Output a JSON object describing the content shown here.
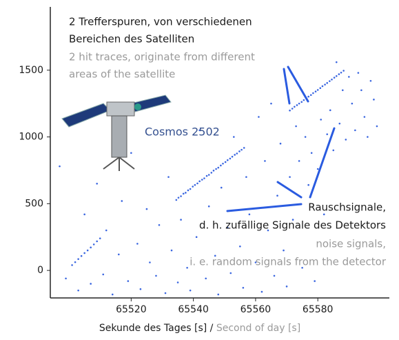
{
  "chart_data": {
    "type": "scatter",
    "xlim": [
      65494,
      65603
    ],
    "ylim": [
      -206,
      1974
    ],
    "xticks": [
      65520,
      65540,
      65560,
      65580
    ],
    "yticks": [
      0,
      500,
      1000,
      1500
    ],
    "color": "#3a66e0",
    "xlabel": {
      "de": "Sekunde des Tages [s]",
      "sep": "/",
      "en": "Second of day [s]"
    },
    "annotations": {
      "traces_de": [
        "2 Trefferspuren, von verschiedenen",
        "Bereichen des Satelliten"
      ],
      "traces_en": [
        "2 hit traces, originate from different",
        "areas of the satellite"
      ],
      "satellite": "Cosmos 2502",
      "noise_de": [
        "Rauschsignale,",
        "d. h. zufällige Signale des Detektors"
      ],
      "noise_en": [
        "noise signals,",
        "i. e. random signals from the detector"
      ]
    },
    "x": [
      65534.5,
      65535.2,
      65536.0,
      65536.8,
      65537.5,
      65538.3,
      65539.0,
      65539.8,
      65540.5,
      65541.3,
      65542.0,
      65542.8,
      65543.5,
      65544.3,
      65545.0,
      65545.8,
      65546.5,
      65547.3,
      65548.0,
      65548.8,
      65549.5,
      65550.3,
      65551.0,
      65551.8,
      65552.5,
      65553.3,
      65554.0,
      65554.8,
      65555.5,
      65556.3,
      65571.0,
      65571.8,
      65572.5,
      65573.3,
      65574.0,
      65574.8,
      65575.5,
      65576.3,
      65577.0,
      65577.8,
      65578.5,
      65579.3,
      65580.0,
      65580.8,
      65581.5,
      65582.3,
      65583.0,
      65583.8,
      65584.5,
      65585.3,
      65586.0,
      65586.8,
      65587.5,
      65588.3,
      65501,
      65502,
      65503,
      65504,
      65505,
      65506,
      65507,
      65508,
      65509,
      65510,
      65497,
      65499,
      65503,
      65505,
      65507,
      65509,
      65511,
      65512,
      65514,
      65516,
      65517,
      65519,
      65520,
      65522,
      65523,
      65525,
      65526,
      65528,
      65529,
      65531,
      65532,
      65533,
      65535,
      65536,
      65538,
      65539,
      65541,
      65542,
      65544,
      65545,
      65547,
      65548,
      65549,
      65551,
      65552,
      65553,
      65555,
      65556,
      65557,
      65558,
      65560,
      65561,
      65562,
      65563,
      65564,
      65565,
      65566,
      65567,
      65568,
      65569,
      65570,
      65571,
      65572,
      65573,
      65574,
      65575,
      65576,
      65577,
      65578,
      65579,
      65580,
      65581,
      65582,
      65583,
      65584,
      65585,
      65586,
      65587,
      65588,
      65589,
      65590,
      65591,
      65592,
      65593,
      65594,
      65595,
      65596,
      65597,
      65598,
      65599
    ],
    "values": [
      528,
      545,
      556,
      575,
      582,
      600,
      610,
      628,
      640,
      652,
      668,
      680,
      690,
      708,
      716,
      732,
      748,
      760,
      770,
      786,
      800,
      812,
      826,
      838,
      852,
      866,
      876,
      892,
      904,
      918,
      1198,
      1212,
      1226,
      1238,
      1250,
      1262,
      1276,
      1290,
      1302,
      1314,
      1328,
      1340,
      1352,
      1366,
      1380,
      1392,
      1404,
      1418,
      1430,
      1444,
      1456,
      1470,
      1482,
      1496,
      40,
      62,
      85,
      108,
      130,
      150,
      172,
      195,
      218,
      240,
      780,
      -60,
      -150,
      420,
      -100,
      650,
      -30,
      300,
      -180,
      120,
      520,
      -80,
      880,
      200,
      -140,
      460,
      60,
      -40,
      340,
      -170,
      700,
      150,
      -90,
      380,
      20,
      -150,
      250,
      1050,
      -60,
      480,
      110,
      -180,
      620,
      320,
      -20,
      1000,
      180,
      -130,
      700,
      420,
      60,
      1150,
      -160,
      820,
      300,
      1250,
      -40,
      560,
      950,
      150,
      -120,
      700,
      380,
      1080,
      820,
      20,
      1000,
      640,
      880,
      -80,
      760,
      1130,
      420,
      1020,
      1200,
      900,
      1560,
      1100,
      1350,
      980,
      1450,
      1250,
      1050,
      1480,
      1350,
      1150,
      1000,
      1420,
      1280,
      1080
    ]
  }
}
